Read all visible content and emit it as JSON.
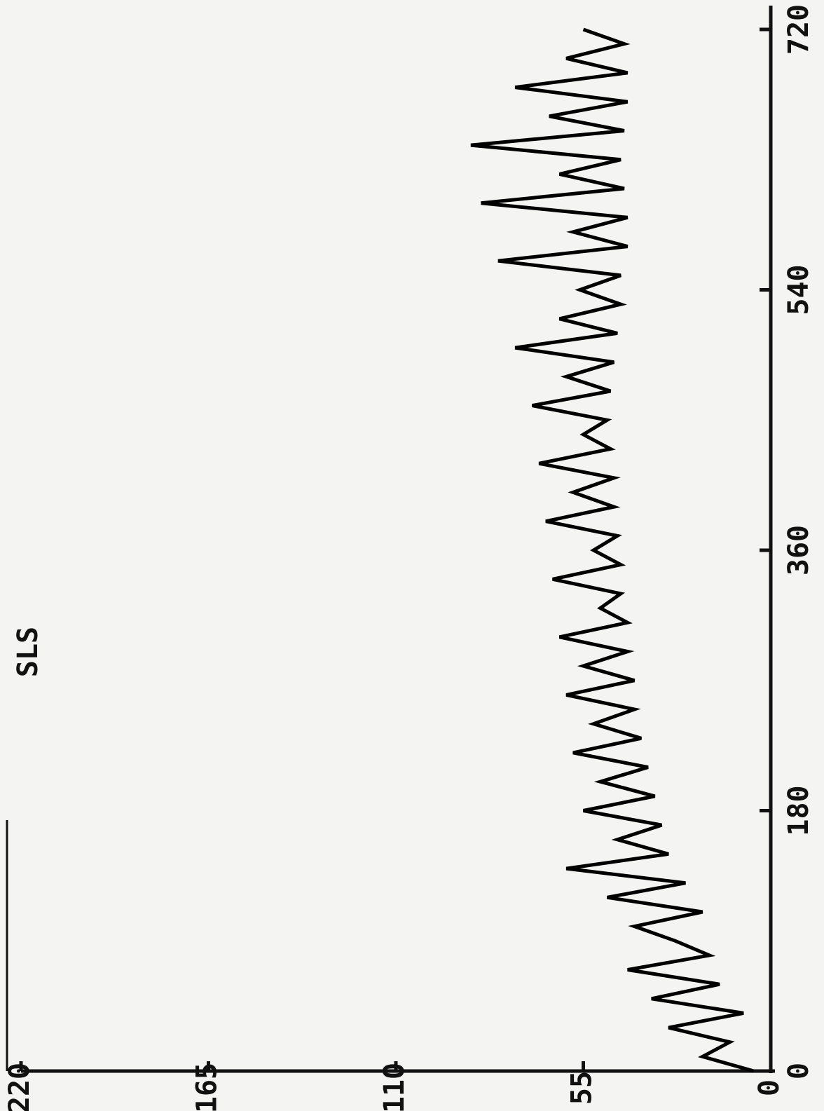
{
  "chart_data": {
    "type": "line",
    "y_label": "SLS",
    "x": [
      0,
      10,
      20,
      30,
      40,
      50,
      60,
      70,
      80,
      90,
      100,
      110,
      120,
      130,
      140,
      150,
      160,
      170,
      180,
      190,
      200,
      210,
      220,
      230,
      240,
      250,
      260,
      270,
      280,
      290,
      300,
      310,
      320,
      330,
      340,
      350,
      360,
      370,
      380,
      390,
      400,
      410,
      420,
      430,
      440,
      450,
      460,
      470,
      480,
      490,
      500,
      510,
      520,
      530,
      540,
      550,
      560,
      570,
      580,
      590,
      600,
      610,
      620,
      630,
      640,
      650,
      660,
      670,
      680,
      690,
      700,
      710,
      720
    ],
    "values": [
      5,
      20,
      12,
      30,
      8,
      35,
      15,
      42,
      18,
      28,
      40,
      20,
      48,
      25,
      60,
      30,
      45,
      32,
      55,
      34,
      50,
      36,
      58,
      38,
      52,
      40,
      60,
      40,
      55,
      42,
      62,
      42,
      50,
      44,
      64,
      44,
      52,
      45,
      66,
      46,
      58,
      46,
      68,
      47,
      55,
      48,
      70,
      47,
      60,
      46,
      75,
      45,
      62,
      44,
      56,
      44,
      80,
      42,
      58,
      42,
      85,
      43,
      62,
      44,
      88,
      43,
      65,
      42,
      75,
      42,
      60,
      43,
      55
    ],
    "color": "#000000",
    "xlim": [
      0,
      720
    ],
    "xticks": [
      0,
      180,
      360,
      540,
      720
    ],
    "ylim": [
      0,
      220
    ],
    "yticks": [
      0,
      55,
      110,
      165,
      220
    ]
  }
}
